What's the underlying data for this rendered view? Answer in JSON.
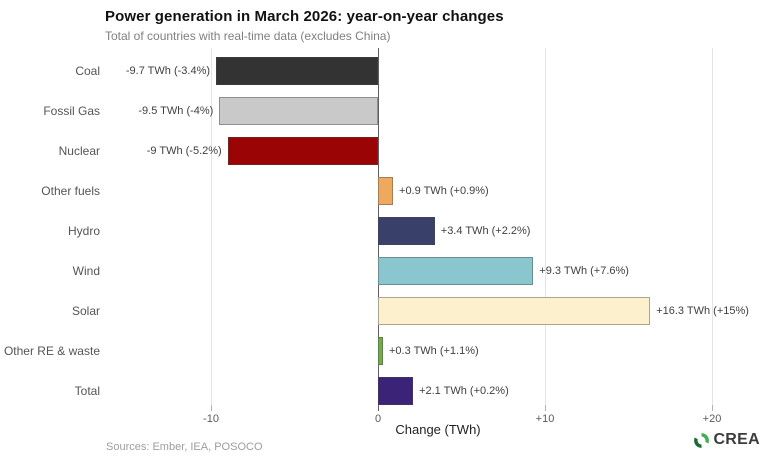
{
  "chart_data": {
    "type": "bar",
    "orientation": "horizontal",
    "title": "Power generation in March 2026: year-on-year changes",
    "subtitle": "Total of countries with real-time data (excludes China)",
    "xlabel": "Change (TWh)",
    "xlim": [
      -16,
      22.8
    ],
    "grid": "vertical-major-only",
    "legend": "none",
    "x_ticks": [
      {
        "value": -10,
        "label": "-10"
      },
      {
        "value": 0,
        "label": "0"
      },
      {
        "value": 10,
        "label": "+10"
      },
      {
        "value": 20,
        "label": "+20"
      }
    ],
    "categories": [
      "Coal",
      "Fossil Gas",
      "Nuclear",
      "Other fuels",
      "Hydro",
      "Wind",
      "Solar",
      "Other RE & waste",
      "Total"
    ],
    "values": [
      -9.7,
      -9.5,
      -9,
      0.9,
      3.4,
      9.3,
      16.3,
      0.3,
      2.1
    ],
    "value_labels": [
      "-9.7 TWh (-3.4%)",
      "-9.5 TWh (-4%)",
      "-9 TWh (-5.2%)",
      "+0.9 TWh (+0.9%)",
      "+3.4 TWh (+2.2%)",
      "+9.3 TWh (+7.6%)",
      "+16.3 TWh (+15%)",
      "+0.3 TWh (+1.1%)",
      "+2.1 TWh (+0.2%)"
    ],
    "percent_changes": [
      "-3.4%",
      "-4%",
      "-5.2%",
      "+0.9%",
      "+2.2%",
      "+7.6%",
      "+15%",
      "+1.1%",
      "+0.2%"
    ],
    "bar_colors": [
      "#333333",
      "#c9c9c9",
      "#9b0404",
      "#efa95e",
      "#394069",
      "#8ac6ce",
      "#fcf1cc",
      "#72ae47",
      "#3b2377"
    ]
  },
  "footer": {
    "sources": "Sources: Ember, IEA, POSOCO",
    "logo_text": "CREA"
  },
  "colors": {
    "logo_green_light": "#3fae54",
    "logo_green_dark": "#1c6b37",
    "zero_axis": "#5f5f5f",
    "gridline": "#e4e4e4"
  }
}
